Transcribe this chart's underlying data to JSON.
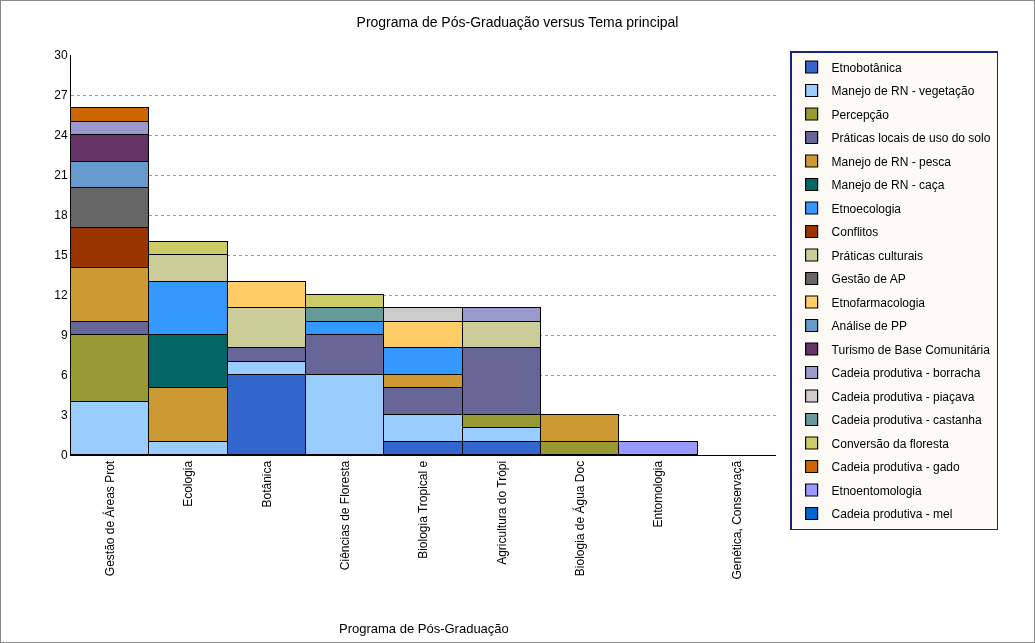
{
  "chart_data": {
    "type": "bar",
    "title": "Programa de Pós-Graduação versus Tema principal",
    "xlabel": "Programa de Pós-Graduação",
    "categories": [
      "Gestão de Áreas Prot",
      "Ecologia",
      "Botânica",
      "Ciências de Floresta",
      "Biologia Tropical e",
      "Agricultura do Trópi",
      "Biologia de Água Doc",
      "Entomologia",
      "Genética, Conservaçã"
    ],
    "stacked": true,
    "ylim": [
      0,
      30
    ],
    "yticks": [
      0,
      3,
      6,
      9,
      12,
      15,
      18,
      21,
      24,
      27,
      30
    ],
    "grid": "y",
    "legend": "right",
    "series": [
      {
        "name": "Etnobotânica",
        "color": "#3366cc",
        "values": [
          null,
          null,
          6,
          null,
          1,
          1,
          null,
          null,
          null
        ]
      },
      {
        "name": "Manejo de RN - vegetação",
        "color": "#99ccff",
        "values": [
          4,
          1,
          1,
          6,
          2,
          1,
          null,
          null,
          null
        ]
      },
      {
        "name": "Percepção",
        "color": "#999933",
        "values": [
          5,
          null,
          null,
          null,
          null,
          1,
          1,
          null,
          null
        ]
      },
      {
        "name": "Práticas locais de uso do solo",
        "color": "#666699",
        "values": [
          1,
          null,
          1,
          3,
          2,
          5,
          null,
          null,
          null
        ]
      },
      {
        "name": "Manejo de RN - pesca",
        "color": "#cc9933",
        "values": [
          4,
          4,
          null,
          null,
          1,
          null,
          2,
          null,
          null
        ]
      },
      {
        "name": "Manejo de RN - caça",
        "color": "#006666",
        "values": [
          null,
          4,
          null,
          null,
          null,
          null,
          null,
          null,
          null
        ]
      },
      {
        "name": "Etnoecologia",
        "color": "#3399ff",
        "values": [
          null,
          4,
          null,
          1,
          2,
          null,
          null,
          null,
          null
        ]
      },
      {
        "name": "Conflitos",
        "color": "#993300",
        "values": [
          3,
          null,
          null,
          null,
          null,
          null,
          null,
          null,
          null
        ]
      },
      {
        "name": "Práticas culturais",
        "color": "#cccc99",
        "values": [
          null,
          2,
          3,
          null,
          null,
          2,
          null,
          null,
          null
        ]
      },
      {
        "name": "Gestão de AP",
        "color": "#666666",
        "values": [
          3,
          null,
          null,
          null,
          null,
          null,
          null,
          null,
          null
        ]
      },
      {
        "name": "Etnofarmacologia",
        "color": "#ffcc66",
        "values": [
          null,
          null,
          2,
          null,
          2,
          null,
          null,
          null,
          null
        ]
      },
      {
        "name": "Análise de PP",
        "color": "#6699cc",
        "values": [
          2,
          null,
          null,
          null,
          null,
          null,
          null,
          null,
          null
        ]
      },
      {
        "name": "Turismo de Base Comunitária",
        "color": "#663366",
        "values": [
          2,
          null,
          null,
          null,
          null,
          null,
          null,
          null,
          null
        ]
      },
      {
        "name": "Cadeia produtiva - borracha",
        "color": "#9999cc",
        "values": [
          1,
          null,
          null,
          null,
          null,
          1,
          null,
          null,
          null
        ]
      },
      {
        "name": "Cadeia produtiva - piaçava",
        "color": "#cccccc",
        "values": [
          null,
          null,
          null,
          null,
          1,
          null,
          null,
          null,
          null
        ]
      },
      {
        "name": "Cadeia produtiva - castanha",
        "color": "#669999",
        "values": [
          null,
          null,
          null,
          1,
          null,
          null,
          null,
          null,
          null
        ]
      },
      {
        "name": "Conversão da floresta",
        "color": "#cccc66",
        "values": [
          null,
          1,
          null,
          1,
          null,
          null,
          null,
          null,
          null
        ]
      },
      {
        "name": "Cadeia produtiva - gado",
        "color": "#cc6600",
        "values": [
          1,
          null,
          null,
          null,
          null,
          null,
          null,
          null,
          null
        ]
      },
      {
        "name": "Etnoentomologia",
        "color": "#9999ff",
        "values": [
          null,
          null,
          null,
          null,
          null,
          null,
          null,
          1,
          null
        ]
      },
      {
        "name": "Cadeia produtiva - mel",
        "color": "#0066cc",
        "values": [
          null,
          null,
          null,
          null,
          null,
          null,
          null,
          null,
          null
        ]
      }
    ]
  }
}
